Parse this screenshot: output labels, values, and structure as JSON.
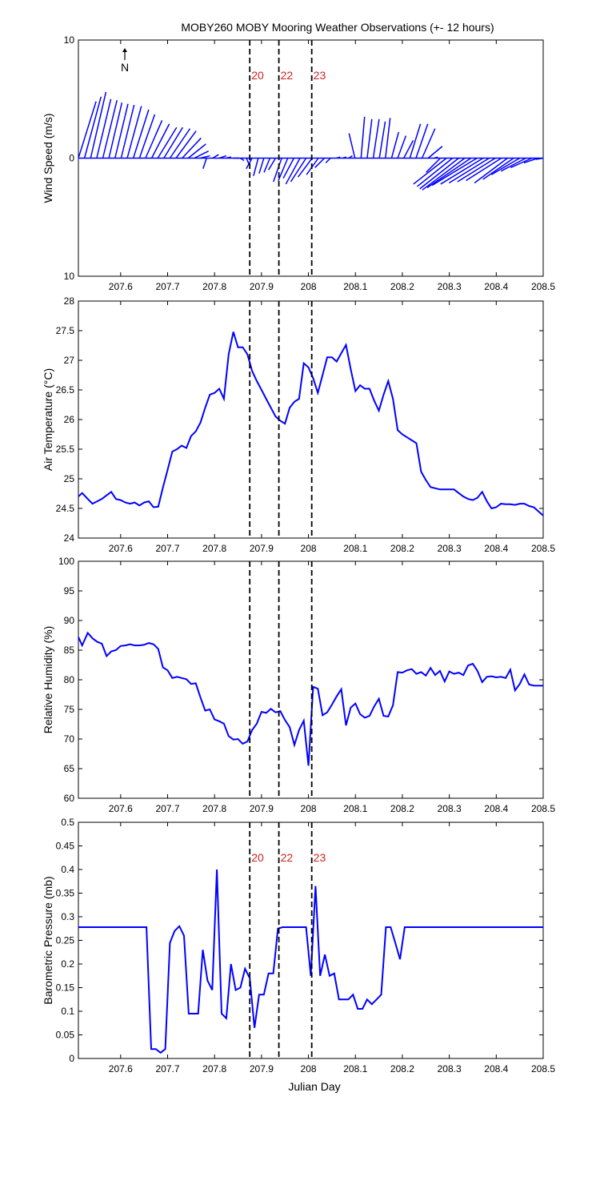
{
  "title": "MOBY260 MOBY Mooring Weather Observations (+- 12 hours)",
  "colors": {
    "series": "#0000ff",
    "marker_label": "#cc2222",
    "axis": "#000000"
  },
  "markers": {
    "x": [
      207.875,
      207.937,
      208.007
    ],
    "labels": [
      "20",
      "22",
      "23"
    ]
  },
  "chart_data": [
    {
      "type": "quiver",
      "ylabel": "Wind Speed (m/s)",
      "xlim": [
        207.51,
        208.5
      ],
      "ylim": [
        -10,
        10
      ],
      "yticks": [
        "10",
        "0",
        "10"
      ],
      "ytick_values": [
        10,
        0,
        -10
      ],
      "xticks": [
        207.6,
        207.7,
        207.8,
        207.9,
        208,
        208.1,
        208.2,
        208.3,
        208.4,
        208.5
      ],
      "north_label": "N",
      "show_marker_labels": true,
      "vectors": [
        [
          207.51,
          1.5,
          4.8
        ],
        [
          207.523,
          1.4,
          5.2
        ],
        [
          207.536,
          1.3,
          5.6
        ],
        [
          207.549,
          1.2,
          5.0
        ],
        [
          207.562,
          1.2,
          4.9
        ],
        [
          207.575,
          1.1,
          4.7
        ],
        [
          207.588,
          1.1,
          4.6
        ],
        [
          207.601,
          1.1,
          4.5
        ],
        [
          207.614,
          1.2,
          4.4
        ],
        [
          207.627,
          1.3,
          4.1
        ],
        [
          207.64,
          1.3,
          3.7
        ],
        [
          207.653,
          1.4,
          3.2
        ],
        [
          207.666,
          1.5,
          2.9
        ],
        [
          207.679,
          1.6,
          2.6
        ],
        [
          207.692,
          1.6,
          2.6
        ],
        [
          207.705,
          1.7,
          2.5
        ],
        [
          207.718,
          1.7,
          2.3
        ],
        [
          207.731,
          1.6,
          1.7
        ],
        [
          207.744,
          1.5,
          1.2
        ],
        [
          207.757,
          1.2,
          0.6
        ],
        [
          207.77,
          0.8,
          0.2
        ],
        [
          207.783,
          -0.3,
          -0.9
        ],
        [
          207.796,
          0.5,
          0.3
        ],
        [
          207.81,
          0.6,
          0.2
        ],
        [
          207.825,
          0.4,
          0.1
        ],
        [
          207.84,
          0.5,
          0.0
        ],
        [
          207.855,
          0.3,
          -0.2
        ],
        [
          207.868,
          0.2,
          -0.5
        ],
        [
          207.88,
          -0.5,
          -0.9
        ],
        [
          207.893,
          -0.4,
          -1.5
        ],
        [
          207.905,
          -0.4,
          -1.3
        ],
        [
          207.918,
          -0.5,
          -1.2
        ],
        [
          207.93,
          -0.6,
          -1.0
        ],
        [
          207.943,
          -0.7,
          -2.0
        ],
        [
          207.956,
          -0.8,
          -1.9
        ],
        [
          207.969,
          -0.9,
          -1.7
        ],
        [
          207.982,
          -1.2,
          -2.2
        ],
        [
          207.995,
          -1.3,
          -2.0
        ],
        [
          208.008,
          -1.2,
          -1.6
        ],
        [
          208.021,
          -1.0,
          -1.4
        ],
        [
          208.034,
          -0.8,
          -0.8
        ],
        [
          208.047,
          -0.4,
          -0.4
        ],
        [
          208.06,
          0.3,
          0.1
        ],
        [
          208.073,
          0.3,
          0.1
        ],
        [
          208.086,
          0.3,
          0.2
        ],
        [
          208.099,
          -0.5,
          2.1
        ],
        [
          208.112,
          0.3,
          3.5
        ],
        [
          208.125,
          0.4,
          3.3
        ],
        [
          208.138,
          0.5,
          3.3
        ],
        [
          208.151,
          0.5,
          3.1
        ],
        [
          208.164,
          0.4,
          3.4
        ],
        [
          208.177,
          0.6,
          2.2
        ],
        [
          208.19,
          0.7,
          1.9
        ],
        [
          208.203,
          0.8,
          1.5
        ],
        [
          208.216,
          0.9,
          2.9
        ],
        [
          208.229,
          1.0,
          2.9
        ],
        [
          208.242,
          1.1,
          2.5
        ],
        [
          208.255,
          1.2,
          1.0
        ],
        [
          208.268,
          0.3,
          0.1
        ],
        [
          208.281,
          -1.2,
          -1.2
        ],
        [
          208.294,
          -2.8,
          -2.2
        ],
        [
          208.307,
          -3.0,
          -2.4
        ],
        [
          208.32,
          -3.3,
          -2.6
        ],
        [
          208.333,
          -3.6,
          -2.7
        ],
        [
          208.346,
          -3.7,
          -2.5
        ],
        [
          208.359,
          -3.8,
          -2.3
        ],
        [
          208.372,
          -3.6,
          -2.2
        ],
        [
          208.385,
          -3.4,
          -2.1
        ],
        [
          208.398,
          -3.2,
          -2.0
        ],
        [
          208.411,
          -3.0,
          -1.9
        ],
        [
          208.424,
          -2.8,
          -2.1
        ],
        [
          208.437,
          -2.6,
          -1.8
        ],
        [
          208.45,
          -2.4,
          -1.4
        ],
        [
          208.463,
          -2.1,
          -1.1
        ],
        [
          208.476,
          -1.8,
          -0.8
        ],
        [
          208.489,
          -1.2,
          -0.4
        ],
        [
          208.5,
          -0.6,
          -0.1
        ]
      ]
    },
    {
      "type": "line",
      "ylabel": "Air Temperature (°C)",
      "xlim": [
        207.51,
        208.5
      ],
      "ylim": [
        24,
        28
      ],
      "yticks": [
        24,
        24.5,
        25,
        25.5,
        26,
        26.5,
        27,
        27.5,
        28
      ],
      "xticks": [
        207.6,
        207.7,
        207.8,
        207.9,
        208,
        208.1,
        208.2,
        208.3,
        208.4,
        208.5
      ],
      "show_marker_labels": false,
      "x": [
        207.51,
        207.518,
        207.53,
        207.54,
        207.55,
        207.56,
        207.57,
        207.58,
        207.59,
        207.6,
        207.61,
        207.62,
        207.63,
        207.64,
        207.65,
        207.66,
        207.67,
        207.68,
        207.69,
        207.7,
        207.71,
        207.72,
        207.73,
        207.74,
        207.75,
        207.76,
        207.77,
        207.78,
        207.79,
        207.8,
        207.81,
        207.82,
        207.83,
        207.84,
        207.85,
        207.86,
        207.87,
        207.88,
        207.89,
        207.9,
        207.91,
        207.92,
        207.93,
        207.94,
        207.95,
        207.96,
        207.97,
        207.98,
        207.99,
        208.0,
        208.01,
        208.02,
        208.03,
        208.04,
        208.05,
        208.06,
        208.07,
        208.08,
        208.09,
        208.1,
        208.11,
        208.12,
        208.13,
        208.14,
        208.15,
        208.16,
        208.17,
        208.18,
        208.19,
        208.2,
        208.21,
        208.22,
        208.23,
        208.24,
        208.25,
        208.26,
        208.27,
        208.28,
        208.29,
        208.3,
        208.31,
        208.32,
        208.33,
        208.34,
        208.35,
        208.36,
        208.37,
        208.38,
        208.39,
        208.4,
        208.41,
        208.42,
        208.43,
        208.44,
        208.45,
        208.46,
        208.47,
        208.48,
        208.49,
        208.5
      ],
      "y": [
        24.7,
        24.76,
        24.66,
        24.58,
        24.62,
        24.66,
        24.72,
        24.78,
        24.66,
        24.64,
        24.6,
        24.58,
        24.6,
        24.55,
        24.6,
        24.62,
        24.52,
        24.53,
        24.85,
        25.15,
        25.46,
        25.5,
        25.56,
        25.52,
        25.72,
        25.8,
        25.95,
        26.2,
        26.42,
        26.45,
        26.52,
        26.35,
        27.1,
        27.48,
        27.22,
        27.22,
        27.1,
        26.82,
        26.65,
        26.5,
        26.35,
        26.2,
        26.05,
        25.98,
        25.93,
        26.2,
        26.3,
        26.35,
        26.95,
        26.88,
        26.7,
        26.45,
        26.75,
        27.05,
        27.05,
        26.98,
        27.12,
        27.26,
        26.85,
        26.48,
        26.58,
        26.52,
        26.52,
        26.32,
        26.15,
        26.42,
        26.65,
        26.35,
        25.82,
        25.75,
        25.7,
        25.65,
        25.6,
        25.12,
        24.98,
        24.86,
        24.84,
        24.82,
        24.82,
        24.82,
        24.82,
        24.76,
        24.7,
        24.66,
        24.64,
        24.68,
        24.78,
        24.62,
        24.5,
        24.52,
        24.58,
        24.57,
        24.57,
        24.56,
        24.58,
        24.58,
        24.54,
        24.52,
        24.45,
        24.38
      ]
    },
    {
      "type": "line",
      "ylabel": "Relative Humidity (%)",
      "xlim": [
        207.51,
        208.5
      ],
      "ylim": [
        60,
        100
      ],
      "yticks": [
        60,
        65,
        70,
        75,
        80,
        85,
        90,
        95,
        100
      ],
      "xticks": [
        207.6,
        207.7,
        207.8,
        207.9,
        208,
        208.1,
        208.2,
        208.3,
        208.4,
        208.5
      ],
      "show_marker_labels": false,
      "x": [
        207.51,
        207.518,
        207.53,
        207.54,
        207.55,
        207.56,
        207.57,
        207.58,
        207.59,
        207.6,
        207.61,
        207.62,
        207.63,
        207.64,
        207.65,
        207.66,
        207.67,
        207.68,
        207.69,
        207.7,
        207.71,
        207.72,
        207.73,
        207.74,
        207.75,
        207.76,
        207.77,
        207.78,
        207.79,
        207.8,
        207.81,
        207.82,
        207.83,
        207.84,
        207.85,
        207.86,
        207.87,
        207.88,
        207.89,
        207.9,
        207.91,
        207.92,
        207.93,
        207.94,
        207.95,
        207.96,
        207.97,
        207.98,
        207.99,
        208.0,
        208.01,
        208.02,
        208.03,
        208.04,
        208.05,
        208.06,
        208.07,
        208.08,
        208.09,
        208.1,
        208.11,
        208.12,
        208.13,
        208.14,
        208.15,
        208.16,
        208.17,
        208.18,
        208.19,
        208.2,
        208.21,
        208.22,
        208.23,
        208.24,
        208.25,
        208.26,
        208.27,
        208.28,
        208.29,
        208.3,
        208.31,
        208.32,
        208.33,
        208.34,
        208.35,
        208.36,
        208.37,
        208.38,
        208.39,
        208.4,
        208.41,
        208.42,
        208.43,
        208.44,
        208.45,
        208.46,
        208.47,
        208.48,
        208.49,
        208.5
      ],
      "y": [
        87.2,
        85.8,
        87.9,
        87.0,
        86.4,
        86.1,
        84.0,
        84.8,
        85.0,
        85.7,
        85.8,
        86.0,
        85.8,
        85.8,
        85.9,
        86.2,
        86.0,
        85.2,
        82.1,
        81.6,
        80.3,
        80.5,
        80.3,
        80.1,
        79.3,
        79.4,
        77.0,
        74.8,
        75.0,
        73.3,
        73.0,
        72.6,
        70.5,
        69.9,
        70.0,
        69.2,
        69.6,
        71.5,
        72.6,
        74.6,
        74.4,
        75.1,
        74.5,
        74.7,
        73.2,
        72.0,
        69.0,
        71.5,
        73.1,
        65.5,
        78.8,
        78.5,
        74.0,
        74.5,
        75.8,
        77.2,
        78.4,
        72.3,
        75.3,
        76.0,
        74.2,
        73.6,
        73.9,
        75.5,
        76.8,
        73.9,
        73.8,
        75.7,
        81.3,
        81.2,
        81.6,
        81.8,
        81.0,
        81.3,
        80.7,
        82.0,
        80.8,
        81.5,
        79.7,
        81.4,
        81.0,
        81.2,
        80.8,
        82.4,
        82.7,
        81.5,
        79.6,
        80.5,
        80.6,
        80.4,
        80.5,
        80.3,
        81.7,
        78.2,
        79.3,
        80.9,
        79.2,
        79.0,
        79.0,
        79.0
      ]
    },
    {
      "type": "line",
      "ylabel": "Barometric Pressure (mb)",
      "xlabel": "Julian Day",
      "xlim": [
        207.51,
        208.5
      ],
      "ylim": [
        0,
        0.5
      ],
      "yticks": [
        0,
        0.05,
        0.1,
        0.15,
        0.2,
        0.25,
        0.3,
        0.35,
        0.4,
        0.45,
        0.5
      ],
      "xticks": [
        207.6,
        207.7,
        207.8,
        207.9,
        208,
        208.1,
        208.2,
        208.3,
        208.4,
        208.5
      ],
      "show_marker_labels": true,
      "x": [
        207.51,
        207.6,
        207.645,
        207.655,
        207.665,
        207.675,
        207.685,
        207.695,
        207.705,
        207.715,
        207.725,
        207.735,
        207.745,
        207.755,
        207.765,
        207.775,
        207.785,
        207.795,
        207.805,
        207.815,
        207.825,
        207.835,
        207.845,
        207.855,
        207.865,
        207.875,
        207.885,
        207.895,
        207.905,
        207.915,
        207.925,
        207.935,
        207.945,
        207.955,
        207.965,
        207.975,
        207.985,
        207.995,
        208.005,
        208.015,
        208.025,
        208.035,
        208.045,
        208.055,
        208.065,
        208.075,
        208.085,
        208.095,
        208.105,
        208.115,
        208.125,
        208.135,
        208.145,
        208.155,
        208.165,
        208.175,
        208.185,
        208.195,
        208.205,
        208.215,
        208.225,
        208.3,
        208.4,
        208.5
      ],
      "y": [
        0.278,
        0.278,
        0.278,
        0.278,
        0.02,
        0.02,
        0.012,
        0.02,
        0.245,
        0.27,
        0.28,
        0.26,
        0.095,
        0.095,
        0.095,
        0.23,
        0.165,
        0.145,
        0.4,
        0.095,
        0.085,
        0.2,
        0.145,
        0.15,
        0.19,
        0.17,
        0.065,
        0.135,
        0.135,
        0.18,
        0.18,
        0.275,
        0.278,
        0.278,
        0.278,
        0.278,
        0.278,
        0.278,
        0.175,
        0.365,
        0.175,
        0.22,
        0.175,
        0.18,
        0.125,
        0.125,
        0.125,
        0.135,
        0.105,
        0.105,
        0.125,
        0.115,
        0.125,
        0.135,
        0.278,
        0.278,
        0.245,
        0.21,
        0.278,
        0.278,
        0.278,
        0.278,
        0.278,
        0.278
      ]
    }
  ]
}
